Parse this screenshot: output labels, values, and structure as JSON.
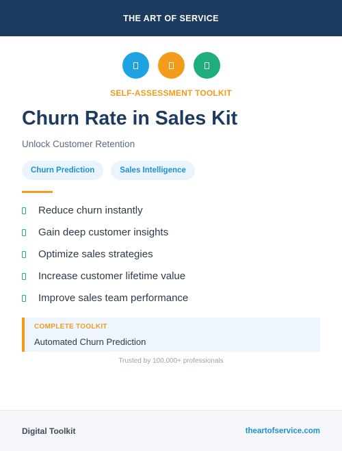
{
  "header": {
    "brand": "THE ART OF SERVICE"
  },
  "icons": [
    {
      "name": "document-icon",
      "color": "#1fa3e0"
    },
    {
      "name": "document-icon",
      "color": "#f29b1c"
    },
    {
      "name": "document-icon",
      "color": "#1fad7b"
    }
  ],
  "kicker": "SELF-ASSESSMENT TOOLKIT",
  "title": "Churn Rate in Sales Kit",
  "subtitle": "Unlock Customer Retention",
  "tags": [
    "Churn Prediction",
    "Sales Intelligence"
  ],
  "features": [
    "Reduce churn instantly",
    "Gain deep customer insights",
    "Optimize sales strategies",
    "Increase customer lifetime value",
    "Improve sales team performance"
  ],
  "callout": {
    "label": "COMPLETE TOOLKIT",
    "value": "Automated Churn Prediction"
  },
  "trusted": "Trusted by 100,000+ professionals",
  "footer": {
    "left": "Digital Toolkit",
    "right": "theartofservice.com"
  },
  "colors": {
    "navy": "#1d3a5f",
    "orange": "#f29b1c",
    "blue": "#1fa3e0",
    "green": "#1fad7b"
  }
}
